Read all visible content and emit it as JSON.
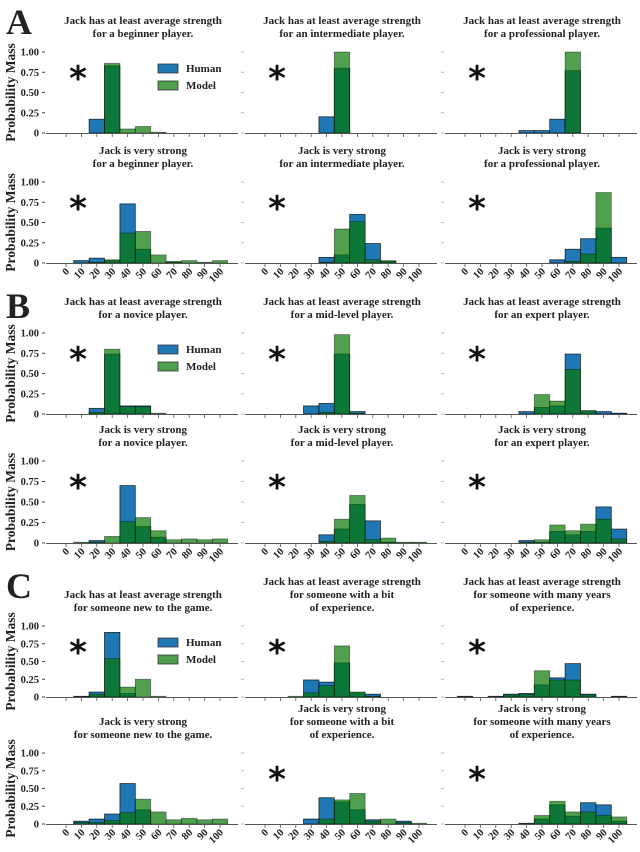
{
  "legend": {
    "human": "Human",
    "model": "Model"
  },
  "ylabel": "Probability Mass",
  "yticks": [
    "1.00",
    "0.75",
    "0.50",
    "0.25",
    "0"
  ],
  "xticks": [
    "0",
    "10",
    "20",
    "30",
    "40",
    "50",
    "60",
    "70",
    "80",
    "90",
    "100"
  ],
  "asterisk": "*",
  "colors": {
    "human": "#1f77b4",
    "model": "rgba(5,119,5,0.7)",
    "overlap": "#0d7739"
  },
  "panels": [
    {
      "label": "A",
      "rows": [
        {
          "subplots": [
            {
              "title_lines": [
                "Jack has at least average strength",
                "for a beginner player."
              ],
              "asterisk": true
            },
            {
              "title_lines": [
                "Jack has at least average strength",
                "for an intermediate player."
              ],
              "asterisk": true
            },
            {
              "title_lines": [
                "Jack has at least average strength",
                "for a professional player."
              ],
              "asterisk": true
            }
          ]
        },
        {
          "subplots": [
            {
              "title_lines": [
                "Jack is very strong",
                "for a beginner player."
              ],
              "asterisk": true
            },
            {
              "title_lines": [
                "Jack is very strong",
                "for an intermediate player."
              ],
              "asterisk": true
            },
            {
              "title_lines": [
                "Jack is very strong",
                "for a professional player."
              ],
              "asterisk": true
            }
          ]
        }
      ]
    },
    {
      "label": "B",
      "rows": [
        {
          "subplots": [
            {
              "title_lines": [
                "Jack has at least average strength",
                "for a novice player."
              ],
              "asterisk": true
            },
            {
              "title_lines": [
                "Jack has at least average strength",
                "for a mid-level player."
              ],
              "asterisk": true
            },
            {
              "title_lines": [
                "Jack has at least average strength",
                "for an expert player."
              ],
              "asterisk": true
            }
          ]
        },
        {
          "subplots": [
            {
              "title_lines": [
                "Jack is very strong",
                "for a novice player."
              ],
              "asterisk": true
            },
            {
              "title_lines": [
                "Jack is very strong",
                "for a mid-level player."
              ],
              "asterisk": true
            },
            {
              "title_lines": [
                "Jack is very strong",
                "for an expert player."
              ],
              "asterisk": true
            }
          ]
        }
      ]
    },
    {
      "label": "C",
      "rows": [
        {
          "subplots": [
            {
              "title_lines": [
                "Jack has at least average strength",
                "for someone new to the game."
              ],
              "asterisk": true
            },
            {
              "title_lines": [
                "Jack has at least average strength",
                "for someone with a bit",
                "of experience."
              ],
              "asterisk": true
            },
            {
              "title_lines": [
                "Jack has at least average strength",
                "for someone with many years",
                "of experience."
              ],
              "asterisk": true
            }
          ]
        },
        {
          "subplots": [
            {
              "title_lines": [
                "Jack is very strong",
                "for someone new to the game."
              ],
              "asterisk": false
            },
            {
              "title_lines": [
                "Jack is very strong",
                "for someone with a bit",
                "of experience."
              ],
              "asterisk": true
            },
            {
              "title_lines": [
                "Jack is very strong",
                "for someone with many years",
                "of experience."
              ],
              "asterisk": true
            }
          ]
        }
      ]
    }
  ],
  "chart_data": [
    {
      "type": "bar",
      "panel": "A",
      "categories": [
        0,
        10,
        20,
        30,
        40,
        50,
        60,
        70,
        80,
        90,
        100
      ],
      "ylim": [
        0,
        1
      ],
      "ylabel": "Probability Mass",
      "series": [
        {
          "name": "Human",
          "values": [
            0,
            0,
            0.17,
            0.83,
            0,
            0,
            0,
            0,
            0,
            0,
            0
          ]
        },
        {
          "name": "Model",
          "values": [
            0,
            0,
            0,
            0.86,
            0.05,
            0.08,
            0.01,
            0,
            0,
            0,
            0
          ]
        }
      ]
    },
    {
      "type": "bar",
      "panel": "A",
      "categories": [
        0,
        10,
        20,
        30,
        40,
        50,
        60,
        70,
        80,
        90,
        100
      ],
      "ylim": [
        0,
        1
      ],
      "series": [
        {
          "name": "Human",
          "values": [
            0,
            0,
            0,
            0,
            0.2,
            0.8,
            0,
            0,
            0,
            0,
            0
          ]
        },
        {
          "name": "Model",
          "values": [
            0,
            0,
            0,
            0,
            0,
            1.0,
            0,
            0,
            0,
            0,
            0
          ]
        }
      ]
    },
    {
      "type": "bar",
      "panel": "A",
      "categories": [
        0,
        10,
        20,
        30,
        40,
        50,
        60,
        70,
        80,
        90,
        100
      ],
      "ylim": [
        0,
        1
      ],
      "series": [
        {
          "name": "Human",
          "values": [
            0,
            0,
            0,
            0,
            0.03,
            0.03,
            0.17,
            0.77,
            0,
            0,
            0
          ]
        },
        {
          "name": "Model",
          "values": [
            0,
            0,
            0,
            0,
            0,
            0,
            0,
            1.0,
            0,
            0,
            0
          ]
        }
      ]
    },
    {
      "type": "bar",
      "panel": "A",
      "categories": [
        0,
        10,
        20,
        30,
        40,
        50,
        60,
        70,
        80,
        90,
        100
      ],
      "ylim": [
        0,
        1
      ],
      "ylabel": "Probability Mass",
      "series": [
        {
          "name": "Human",
          "values": [
            0,
            0.03,
            0.06,
            0.03,
            0.73,
            0.17,
            0,
            0.01,
            0,
            0,
            0
          ]
        },
        {
          "name": "Model",
          "values": [
            0,
            0,
            0.01,
            0.04,
            0.37,
            0.39,
            0.1,
            0.02,
            0.03,
            0.01,
            0.03
          ]
        }
      ]
    },
    {
      "type": "bar",
      "panel": "A",
      "categories": [
        0,
        10,
        20,
        30,
        40,
        50,
        60,
        70,
        80,
        90,
        100
      ],
      "ylim": [
        0,
        1
      ],
      "series": [
        {
          "name": "Human",
          "values": [
            0,
            0,
            0,
            0,
            0.07,
            0.1,
            0.6,
            0.24,
            0.02,
            0,
            0
          ]
        },
        {
          "name": "Model",
          "values": [
            0,
            0,
            0,
            0,
            0.01,
            0.42,
            0.51,
            0.04,
            0.03,
            0,
            0
          ]
        }
      ]
    },
    {
      "type": "bar",
      "panel": "A",
      "categories": [
        0,
        10,
        20,
        30,
        40,
        50,
        60,
        70,
        80,
        90,
        100
      ],
      "ylim": [
        0,
        1
      ],
      "series": [
        {
          "name": "Human",
          "values": [
            0,
            0,
            0,
            0,
            0,
            0,
            0.04,
            0.17,
            0.3,
            0.43,
            0.07
          ]
        },
        {
          "name": "Model",
          "values": [
            0,
            0,
            0,
            0,
            0,
            0,
            0,
            0.02,
            0.11,
            0.87,
            0
          ]
        }
      ]
    },
    {
      "type": "bar",
      "panel": "B",
      "categories": [
        0,
        10,
        20,
        30,
        40,
        50,
        60,
        70,
        80,
        90,
        100
      ],
      "ylim": [
        0,
        1
      ],
      "ylabel": "Probability Mass",
      "series": [
        {
          "name": "Human",
          "values": [
            0,
            0,
            0.07,
            0.74,
            0.1,
            0.1,
            0,
            0,
            0,
            0,
            0
          ]
        },
        {
          "name": "Model",
          "values": [
            0,
            0,
            0.02,
            0.8,
            0.09,
            0.09,
            0.01,
            0,
            0,
            0,
            0
          ]
        }
      ]
    },
    {
      "type": "bar",
      "panel": "B",
      "categories": [
        0,
        10,
        20,
        30,
        40,
        50,
        60,
        70,
        80,
        90,
        100
      ],
      "ylim": [
        0,
        1
      ],
      "series": [
        {
          "name": "Human",
          "values": [
            0,
            0,
            0,
            0.1,
            0.13,
            0.74,
            0.03,
            0,
            0,
            0,
            0
          ]
        },
        {
          "name": "Model",
          "values": [
            0,
            0,
            0,
            0,
            0.02,
            0.98,
            0.01,
            0,
            0,
            0,
            0
          ]
        }
      ]
    },
    {
      "type": "bar",
      "panel": "B",
      "categories": [
        0,
        10,
        20,
        30,
        40,
        50,
        60,
        70,
        80,
        90,
        100
      ],
      "ylim": [
        0,
        1
      ],
      "series": [
        {
          "name": "Human",
          "values": [
            0,
            0,
            0,
            0,
            0.03,
            0.08,
            0.1,
            0.74,
            0.04,
            0.03,
            0.01
          ]
        },
        {
          "name": "Model",
          "values": [
            0,
            0,
            0,
            0,
            0,
            0.24,
            0.16,
            0.55,
            0.04,
            0,
            0
          ]
        }
      ]
    },
    {
      "type": "bar",
      "panel": "B",
      "categories": [
        0,
        10,
        20,
        30,
        40,
        50,
        60,
        70,
        80,
        90,
        100
      ],
      "ylim": [
        0,
        1
      ],
      "ylabel": "Probability Mass",
      "series": [
        {
          "name": "Human",
          "values": [
            0,
            0,
            0.03,
            0,
            0.7,
            0.2,
            0.07,
            0,
            0,
            0,
            0
          ]
        },
        {
          "name": "Model",
          "values": [
            0,
            0.01,
            0.01,
            0.08,
            0.26,
            0.31,
            0.15,
            0.04,
            0.05,
            0.04,
            0.05
          ]
        }
      ]
    },
    {
      "type": "bar",
      "panel": "B",
      "categories": [
        0,
        10,
        20,
        30,
        40,
        50,
        60,
        70,
        80,
        90,
        100
      ],
      "ylim": [
        0,
        1
      ],
      "series": [
        {
          "name": "Human",
          "values": [
            0,
            0,
            0,
            0,
            0.1,
            0.17,
            0.47,
            0.27,
            0.01,
            0,
            0
          ]
        },
        {
          "name": "Model",
          "values": [
            0,
            0,
            0,
            0,
            0.02,
            0.29,
            0.58,
            0.04,
            0.06,
            0.01,
            0.01
          ]
        }
      ]
    },
    {
      "type": "bar",
      "panel": "B",
      "categories": [
        0,
        10,
        20,
        30,
        40,
        50,
        60,
        70,
        80,
        90,
        100
      ],
      "ylim": [
        0,
        1
      ],
      "series": [
        {
          "name": "Human",
          "values": [
            0,
            0,
            0,
            0,
            0.03,
            0.01,
            0.14,
            0.1,
            0.14,
            0.44,
            0.17
          ]
        },
        {
          "name": "Model",
          "values": [
            0,
            0,
            0,
            0,
            0.01,
            0.04,
            0.22,
            0.15,
            0.23,
            0.29,
            0.05
          ]
        }
      ]
    },
    {
      "type": "bar",
      "panel": "C",
      "categories": [
        0,
        10,
        20,
        30,
        40,
        50,
        60,
        70,
        80,
        90,
        100
      ],
      "ylim": [
        0,
        1
      ],
      "ylabel": "Probability Mass",
      "series": [
        {
          "name": "Human",
          "values": [
            0,
            0.01,
            0.07,
            0.91,
            0.05,
            0,
            0,
            0,
            0,
            0,
            0
          ]
        },
        {
          "name": "Model",
          "values": [
            0,
            0,
            0.04,
            0.54,
            0.14,
            0.25,
            0.01,
            0,
            0,
            0,
            0
          ]
        }
      ]
    },
    {
      "type": "bar",
      "panel": "C",
      "categories": [
        0,
        10,
        20,
        30,
        40,
        50,
        60,
        70,
        80,
        90,
        100
      ],
      "ylim": [
        0,
        1
      ],
      "series": [
        {
          "name": "Human",
          "values": [
            0,
            0,
            0,
            0.24,
            0.21,
            0.48,
            0.06,
            0.04,
            0,
            0,
            0
          ]
        },
        {
          "name": "Model",
          "values": [
            0,
            0,
            0.01,
            0.06,
            0.16,
            0.72,
            0.07,
            0.01,
            0,
            0,
            0
          ]
        }
      ]
    },
    {
      "type": "bar",
      "panel": "C",
      "categories": [
        0,
        10,
        20,
        30,
        40,
        50,
        60,
        70,
        80,
        90,
        100
      ],
      "ylim": [
        0,
        1
      ],
      "series": [
        {
          "name": "Human",
          "values": [
            0.01,
            0,
            0.01,
            0.04,
            0.05,
            0.17,
            0.27,
            0.47,
            0.04,
            0,
            0.01
          ]
        },
        {
          "name": "Model",
          "values": [
            0,
            0,
            0,
            0.03,
            0.04,
            0.37,
            0.24,
            0.24,
            0.03,
            0,
            0
          ]
        }
      ]
    },
    {
      "type": "bar",
      "panel": "C",
      "categories": [
        0,
        10,
        20,
        30,
        40,
        50,
        60,
        70,
        80,
        90,
        100
      ],
      "ylim": [
        0,
        1
      ],
      "ylabel": "Probability Mass",
      "series": [
        {
          "name": "Human",
          "values": [
            0,
            0.04,
            0.07,
            0.14,
            0.57,
            0.2,
            0,
            0,
            0,
            0,
            0
          ]
        },
        {
          "name": "Model",
          "values": [
            0,
            0.02,
            0.02,
            0.05,
            0.16,
            0.35,
            0.17,
            0.06,
            0.08,
            0.06,
            0.07
          ]
        }
      ]
    },
    {
      "type": "bar",
      "panel": "C",
      "categories": [
        0,
        10,
        20,
        30,
        40,
        50,
        60,
        70,
        80,
        90,
        100
      ],
      "ylim": [
        0,
        1
      ],
      "series": [
        {
          "name": "Human",
          "values": [
            0,
            0,
            0,
            0.07,
            0.37,
            0.31,
            0.2,
            0.06,
            0,
            0.04,
            0
          ]
        },
        {
          "name": "Model",
          "values": [
            0,
            0,
            0,
            0,
            0.07,
            0.34,
            0.43,
            0.04,
            0.07,
            0.02,
            0.01
          ]
        }
      ]
    },
    {
      "type": "bar",
      "panel": "C",
      "categories": [
        0,
        10,
        20,
        30,
        40,
        50,
        60,
        70,
        80,
        90,
        100
      ],
      "ylim": [
        0,
        1
      ],
      "series": [
        {
          "name": "Human",
          "values": [
            0,
            0,
            0,
            0,
            0.01,
            0.07,
            0.27,
            0.11,
            0.3,
            0.27,
            0.04
          ]
        },
        {
          "name": "Model",
          "values": [
            0,
            0,
            0,
            0,
            0,
            0.12,
            0.32,
            0.17,
            0.17,
            0.12,
            0.1
          ]
        }
      ]
    }
  ]
}
